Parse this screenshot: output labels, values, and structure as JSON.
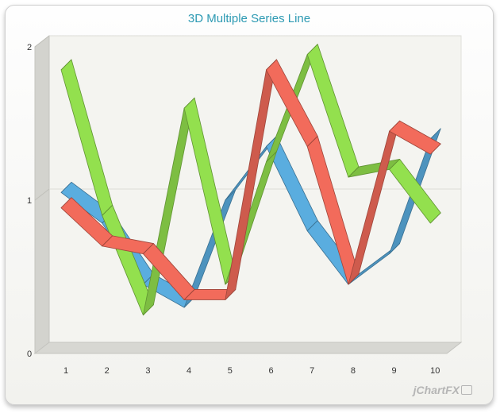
{
  "chart_data": {
    "type": "line",
    "style": "3d-ribbon",
    "title": "3D Multiple Series Line",
    "xlabel": "",
    "ylabel": "",
    "x": [
      "1",
      "2",
      "3",
      "4",
      "5",
      "6",
      "7",
      "8",
      "9",
      "10"
    ],
    "yticks": [
      "0",
      "1",
      "2"
    ],
    "ylim": [
      0,
      2
    ],
    "grid": true,
    "legend": "none",
    "series": [
      {
        "color": "#5aaddf",
        "values": [
          1.05,
          0.85,
          0.45,
          0.3,
          1.0,
          1.35,
          0.8,
          0.45,
          0.65,
          1.4
        ]
      },
      {
        "color": "#93e04e",
        "values": [
          1.85,
          0.9,
          0.25,
          1.6,
          0.45,
          1.25,
          1.95,
          1.15,
          1.2,
          0.85
        ]
      },
      {
        "color": "#f26b5b",
        "values": [
          0.95,
          0.7,
          0.65,
          0.35,
          0.35,
          1.85,
          1.35,
          0.45,
          1.45,
          1.3
        ]
      }
    ]
  },
  "watermark": "jChartFX"
}
